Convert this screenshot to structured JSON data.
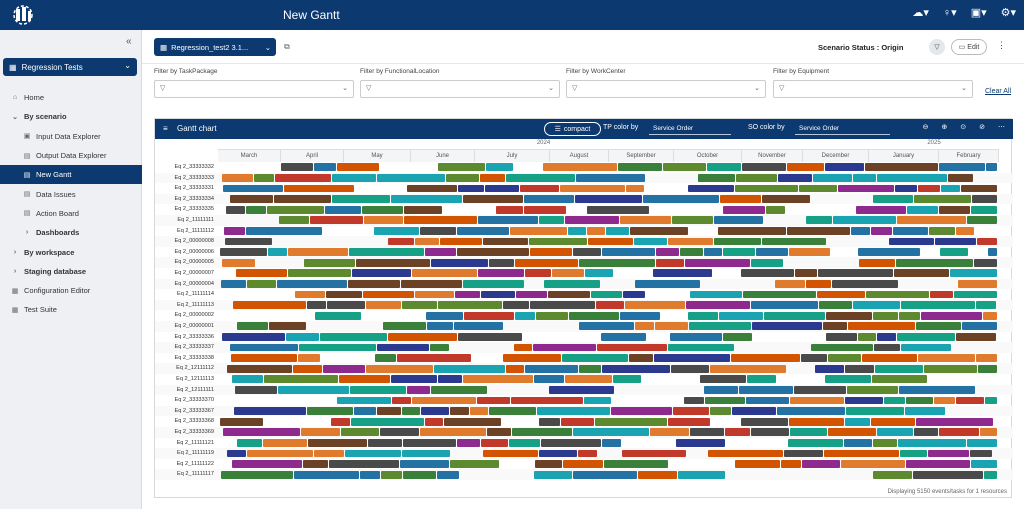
{
  "app": {
    "title": "New Gantt"
  },
  "sidebar": {
    "project": "Regression Tests",
    "items": [
      {
        "label": "Home",
        "icon": "home-icon",
        "glyph": "⌂",
        "indent": 0,
        "state": ""
      },
      {
        "label": "By scenario",
        "icon": "chevron-down-icon",
        "glyph": "⌄",
        "indent": 0,
        "state": "bold"
      },
      {
        "label": "Input Data Explorer",
        "icon": "folder-icon",
        "glyph": "▣",
        "indent": 1,
        "state": ""
      },
      {
        "label": "Output Data Explorer",
        "icon": "table-icon",
        "glyph": "▤",
        "indent": 1,
        "state": ""
      },
      {
        "label": "New Gantt",
        "icon": "gantt-icon",
        "glyph": "▤",
        "indent": 1,
        "state": "active"
      },
      {
        "label": "Data Issues",
        "icon": "table-icon",
        "glyph": "▤",
        "indent": 1,
        "state": ""
      },
      {
        "label": "Action Board",
        "icon": "table-icon",
        "glyph": "▤",
        "indent": 1,
        "state": ""
      },
      {
        "label": "Dashboards",
        "icon": "chevron-right-icon",
        "glyph": "›",
        "indent": 1,
        "state": "bold"
      },
      {
        "label": "By workspace",
        "icon": "chevron-right-icon",
        "glyph": "›",
        "indent": 0,
        "state": "bold"
      },
      {
        "label": "Staging database",
        "icon": "chevron-right-icon",
        "glyph": "›",
        "indent": 0,
        "state": "bold"
      },
      {
        "label": "Configuration Editor",
        "icon": "config-icon",
        "glyph": "▦",
        "indent": 0,
        "state": ""
      },
      {
        "label": "Test Suite",
        "icon": "test-icon",
        "glyph": "▦",
        "indent": 0,
        "state": ""
      }
    ]
  },
  "toolbar": {
    "scenario": "Regression_test2 3.1...",
    "status_label": "Scenario Status : Origin",
    "edit_label": "Edit"
  },
  "filters": [
    {
      "label": "Filter by TaskPackage"
    },
    {
      "label": "Filter by FunctionalLocation"
    },
    {
      "label": "Filter by WorkCenter"
    },
    {
      "label": "Filter by Equipment"
    }
  ],
  "clear_all": "Clear All",
  "gantt": {
    "title": "Gantt chart",
    "compact_label": "compact",
    "tp_color_label": "TP color by",
    "tp_color_value": "Service Order",
    "so_color_label": "SO color by",
    "so_color_value": "Service Order",
    "years": [
      "2024",
      "2025"
    ],
    "months": [
      "March",
      "April",
      "May",
      "June",
      "July",
      "August",
      "September",
      "October",
      "November",
      "December",
      "January",
      "February"
    ],
    "footer": "Displaying 5150 events/tasks for 1 resources",
    "rows": [
      "Eq 2_33333332",
      "Eq 2_33333333",
      "Eq 2_33333331",
      "Eq 2_33333334",
      "Eq 2_33333335",
      "Eq 2_11111111",
      "Eq 2_11111112",
      "Eq 2_00000008",
      "Eq 2_00000006",
      "Eq 2_00000005",
      "Eq 2_00000007",
      "Eq 2_00000004",
      "Eq 2_11111114",
      "Eq 2_11111113",
      "Eq 2_00000002",
      "Eq 2_00000001",
      "Eq 2_33333336",
      "Eq 2_33333337",
      "Eq 2_33333338",
      "Eq 2_12111112",
      "Eq 2_12111113",
      "Eq 2_12111111",
      "Eq 2_33333370",
      "Eq 2_33333367",
      "Eq 2_33333368",
      "Eq 2_33333369",
      "Eq 2_11111121",
      "Eq 2_11111119",
      "Eq 2_11111122",
      "Eq 2_11111117"
    ],
    "palette": [
      "#2b3a8f",
      "#e07b2e",
      "#3a7f3a",
      "#c0392b",
      "#8e2a8e",
      "#1aa3b0",
      "#4a4a4a",
      "#2471a3",
      "#5d8a2f",
      "#d35400",
      "#6b4226",
      "#16a085"
    ]
  }
}
